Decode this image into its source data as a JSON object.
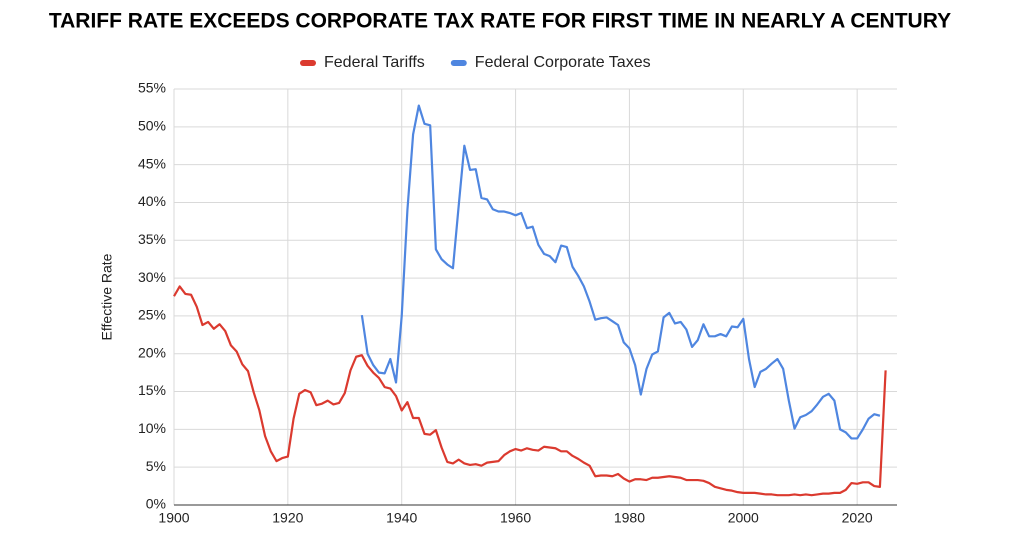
{
  "chart_data": {
    "type": "line",
    "title": "TARIFF RATE EXCEEDS CORPORATE TAX RATE FOR FIRST TIME IN NEARLY A CENTURY",
    "y_label": "Effective Rate",
    "x": [
      1900,
      1901,
      1902,
      1903,
      1904,
      1905,
      1906,
      1907,
      1908,
      1909,
      1910,
      1911,
      1912,
      1913,
      1914,
      1915,
      1916,
      1917,
      1918,
      1919,
      1920,
      1921,
      1922,
      1923,
      1924,
      1925,
      1926,
      1927,
      1928,
      1929,
      1930,
      1931,
      1932,
      1933,
      1934,
      1935,
      1936,
      1937,
      1938,
      1939,
      1940,
      1941,
      1942,
      1943,
      1944,
      1945,
      1946,
      1947,
      1948,
      1949,
      1950,
      1951,
      1952,
      1953,
      1954,
      1955,
      1956,
      1957,
      1958,
      1959,
      1960,
      1961,
      1962,
      1963,
      1964,
      1965,
      1966,
      1967,
      1968,
      1969,
      1970,
      1971,
      1972,
      1973,
      1974,
      1975,
      1976,
      1977,
      1978,
      1979,
      1980,
      1981,
      1982,
      1983,
      1984,
      1985,
      1986,
      1987,
      1988,
      1989,
      1990,
      1991,
      1992,
      1993,
      1994,
      1995,
      1996,
      1997,
      1998,
      1999,
      2000,
      2001,
      2002,
      2003,
      2004,
      2005,
      2006,
      2007,
      2008,
      2009,
      2010,
      2011,
      2012,
      2013,
      2014,
      2015,
      2016,
      2017,
      2018,
      2019,
      2020,
      2021,
      2022,
      2023,
      2024,
      2025
    ],
    "series": [
      {
        "name": "Federal Tariffs",
        "color": "#db3a2f",
        "values": [
          27.6,
          28.9,
          27.9,
          27.8,
          26.2,
          23.8,
          24.2,
          23.3,
          23.9,
          23.0,
          21.1,
          20.3,
          18.6,
          17.7,
          14.9,
          12.5,
          9.1,
          7.1,
          5.8,
          6.2,
          6.4,
          11.4,
          14.7,
          15.2,
          14.9,
          13.2,
          13.4,
          13.8,
          13.3,
          13.5,
          14.8,
          17.8,
          19.6,
          19.8,
          18.4,
          17.5,
          16.8,
          15.6,
          15.4,
          14.4,
          12.5,
          13.6,
          11.5,
          11.5,
          9.4,
          9.3,
          9.9,
          7.6,
          5.7,
          5.5,
          6.0,
          5.5,
          5.3,
          5.4,
          5.2,
          5.6,
          5.7,
          5.8,
          6.6,
          7.1,
          7.4,
          7.2,
          7.5,
          7.3,
          7.2,
          7.7,
          7.6,
          7.5,
          7.1,
          7.1,
          6.5,
          6.1,
          5.6,
          5.2,
          3.8,
          3.9,
          3.9,
          3.8,
          4.1,
          3.5,
          3.1,
          3.4,
          3.4,
          3.3,
          3.6,
          3.6,
          3.7,
          3.8,
          3.7,
          3.6,
          3.3,
          3.3,
          3.3,
          3.2,
          2.9,
          2.4,
          2.2,
          2.0,
          1.9,
          1.7,
          1.6,
          1.6,
          1.6,
          1.5,
          1.4,
          1.4,
          1.3,
          1.3,
          1.3,
          1.4,
          1.3,
          1.4,
          1.3,
          1.4,
          1.5,
          1.5,
          1.6,
          1.6,
          2.0,
          2.9,
          2.8,
          3.0,
          3.0,
          2.5,
          2.4,
          17.8
        ]
      },
      {
        "name": "Federal Corporate Taxes",
        "color": "#4f86e0",
        "values": [
          null,
          null,
          null,
          null,
          null,
          null,
          null,
          null,
          null,
          null,
          null,
          null,
          null,
          null,
          null,
          null,
          null,
          null,
          null,
          null,
          null,
          null,
          null,
          null,
          null,
          null,
          null,
          null,
          null,
          null,
          null,
          null,
          null,
          25.1,
          20.0,
          18.5,
          17.5,
          17.4,
          19.3,
          16.2,
          25.0,
          39.0,
          49.0,
          52.8,
          50.4,
          50.2,
          33.8,
          32.5,
          31.8,
          31.3,
          39.5,
          47.5,
          44.3,
          44.4,
          40.6,
          40.4,
          39.1,
          38.8,
          38.8,
          38.6,
          38.3,
          38.6,
          36.6,
          36.8,
          34.4,
          33.2,
          32.9,
          32.1,
          34.3,
          34.1,
          31.5,
          30.3,
          28.9,
          26.9,
          24.5,
          24.7,
          24.8,
          24.3,
          23.8,
          21.5,
          20.7,
          18.5,
          14.6,
          18.0,
          19.9,
          20.3,
          24.8,
          25.4,
          24.0,
          24.2,
          23.2,
          20.9,
          21.8,
          23.9,
          22.3,
          22.3,
          22.6,
          22.3,
          23.6,
          23.5,
          24.6,
          19.3,
          15.6,
          17.6,
          18.0,
          18.7,
          19.3,
          18.0,
          13.8,
          10.1,
          11.6,
          11.9,
          12.4,
          13.3,
          14.3,
          14.7,
          13.8,
          10.0,
          9.6,
          8.8,
          8.8,
          10.0,
          11.4,
          12.0,
          11.8,
          null
        ]
      }
    ],
    "xlim": [
      1900,
      2027
    ],
    "xticks": [
      1900,
      1920,
      1940,
      1960,
      1980,
      2000,
      2020
    ],
    "ylim": [
      0,
      55
    ],
    "yticks": [
      {
        "value": 0,
        "label": "0%"
      },
      {
        "value": 5,
        "label": "5%"
      },
      {
        "value": 10,
        "label": "10%"
      },
      {
        "value": 15,
        "label": "15%"
      },
      {
        "value": 20,
        "label": "20%"
      },
      {
        "value": 25,
        "label": "25%"
      },
      {
        "value": 30,
        "label": "30%"
      },
      {
        "value": 35,
        "label": "35%"
      },
      {
        "value": 40,
        "label": "40%"
      },
      {
        "value": 45,
        "label": "45%"
      },
      {
        "value": 50,
        "label": "50%"
      },
      {
        "value": 55,
        "label": "55%"
      }
    ],
    "grid": true,
    "legend": "top"
  }
}
